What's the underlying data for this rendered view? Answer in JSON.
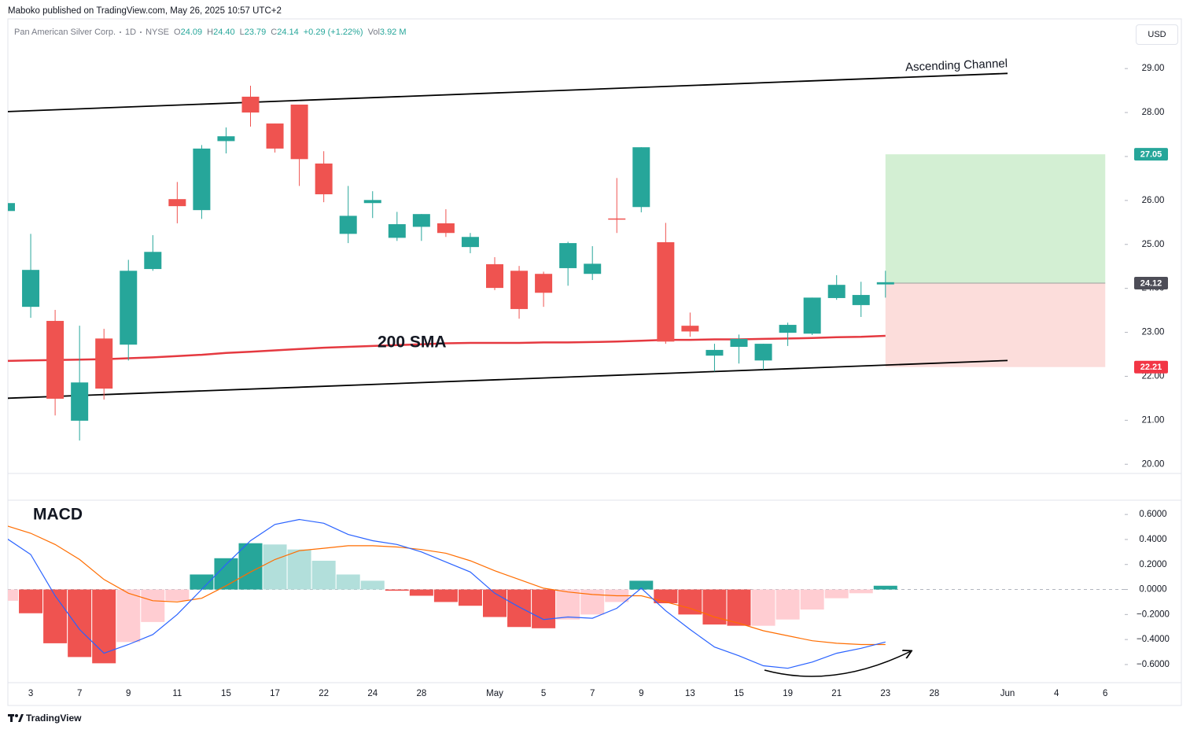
{
  "header": {
    "published": "Maboko published on TradingView.com, May 26, 2025 10:57 UTC+2",
    "currency": "USD",
    "footer": "TradingView",
    "legend": {
      "symbol": "Pan American Silver Corp.",
      "interval": "1D",
      "exchange": "NYSE",
      "items": [
        {
          "label": "O",
          "value": "24.09"
        },
        {
          "label": "H",
          "value": "24.40"
        },
        {
          "label": "L",
          "value": "23.79"
        },
        {
          "label": "C",
          "value": "24.14"
        }
      ],
      "change": "+0.29 (+1.22%)",
      "volume_label": "Vol",
      "volume": "3.92 M"
    }
  },
  "chart_data": [
    {
      "type": "candlestick",
      "up_color": "#26a69a",
      "down_color": "#ef5350",
      "grid": false,
      "categories": [
        null,
        "3",
        null,
        "7",
        null,
        "9",
        null,
        "11",
        null,
        "15",
        null,
        "17",
        null,
        "22",
        null,
        "24",
        null,
        "28",
        null,
        null,
        "May",
        null,
        "5",
        null,
        "7",
        null,
        "9",
        null,
        "13",
        null,
        "15",
        null,
        "19",
        null,
        "21",
        null,
        "23",
        null,
        "28",
        null,
        null,
        "Jun",
        null,
        "4",
        null,
        "6"
      ],
      "open": [
        25.76,
        23.58,
        23.26,
        20.99,
        22.86,
        22.72,
        24.44,
        26.03,
        25.78,
        27.35,
        28.36,
        27.75,
        28.18,
        26.84,
        25.24,
        25.94,
        25.15,
        25.4,
        25.48,
        24.94,
        24.55,
        24.4,
        24.33,
        24.46,
        24.33,
        25.59,
        25.85,
        25.05,
        23.15,
        22.47,
        22.67,
        22.36,
        22.99,
        22.97,
        23.78,
        23.62,
        24.09,
        null,
        null,
        null,
        null,
        null,
        null,
        null,
        null,
        null
      ],
      "high": [
        25.94,
        25.24,
        23.51,
        23.15,
        23.08,
        24.65,
        25.21,
        26.42,
        27.26,
        27.66,
        28.61,
        27.75,
        28.18,
        27.12,
        26.33,
        26.21,
        25.74,
        25.69,
        25.8,
        25.26,
        24.71,
        24.51,
        24.38,
        25.06,
        24.96,
        26.51,
        27.21,
        25.49,
        23.45,
        22.74,
        22.95,
        22.74,
        23.22,
        23.79,
        24.3,
        24.15,
        24.4,
        null,
        null,
        null,
        null,
        null,
        null,
        null,
        null,
        null
      ],
      "low": [
        25.76,
        23.33,
        21.11,
        20.54,
        21.47,
        22.36,
        24.4,
        25.48,
        25.58,
        27.07,
        27.68,
        27.09,
        26.33,
        25.96,
        25.03,
        25.6,
        25.08,
        25.08,
        25.17,
        24.8,
        23.96,
        23.31,
        23.58,
        24.06,
        24.19,
        25.26,
        25.73,
        22.74,
        22.9,
        22.11,
        22.29,
        22.15,
        22.69,
        22.94,
        23.74,
        23.35,
        23.79,
        null,
        null,
        null,
        null,
        null,
        null,
        null,
        null,
        null
      ],
      "close": [
        25.94,
        24.42,
        21.49,
        21.86,
        21.72,
        24.4,
        24.83,
        25.87,
        27.18,
        27.46,
        28.0,
        27.18,
        26.94,
        26.14,
        25.65,
        26.01,
        25.46,
        25.69,
        25.26,
        25.17,
        24.01,
        23.53,
        23.9,
        25.03,
        24.56,
        25.57,
        27.21,
        22.79,
        23.02,
        22.6,
        22.85,
        22.74,
        23.17,
        23.79,
        24.08,
        23.85,
        24.14,
        null,
        null,
        null,
        null,
        null,
        null,
        null,
        null,
        null
      ],
      "series": [
        {
          "name": "200 SMA",
          "color": "#e53940",
          "values": [
            22.35,
            22.36,
            22.37,
            22.38,
            22.39,
            22.41,
            22.43,
            22.46,
            22.49,
            22.53,
            22.56,
            22.59,
            22.62,
            22.65,
            22.67,
            22.69,
            22.71,
            22.73,
            22.75,
            22.76,
            22.76,
            22.76,
            22.77,
            22.77,
            22.78,
            22.79,
            22.81,
            22.83,
            22.83,
            22.84,
            22.84,
            22.85,
            22.86,
            22.87,
            22.89,
            22.9,
            22.92,
            null,
            null,
            null,
            null,
            null,
            null,
            null,
            null,
            null
          ]
        }
      ],
      "trendlines": [
        {
          "name": "Ascending Channel",
          "color": "#000000",
          "from": [
            0,
            28.02
          ],
          "to": [
            41,
            28.89
          ]
        },
        {
          "color": "#000000",
          "from": [
            0,
            21.5
          ],
          "to": [
            41,
            22.36
          ]
        }
      ],
      "position": {
        "from": 36,
        "to": 45,
        "entry": 24.12,
        "target": 27.05,
        "stop": 22.21,
        "target_color": "#d3efd3",
        "stop_color": "#fcdddb",
        "entry_color": "#9e9e9e",
        "target_tag": "#26a69a",
        "entry_tag": "#4d4d57",
        "stop_tag": "#f23645"
      },
      "ylim": [
        19.79,
        30.13
      ],
      "yticks": [
        {
          "value": 20,
          "label": "20.00"
        },
        {
          "value": 21,
          "label": "21.00"
        },
        {
          "value": 22,
          "label": "22.00"
        },
        {
          "value": 23,
          "label": "23.00"
        },
        {
          "value": 24,
          "label": "24.00"
        },
        {
          "value": 25,
          "label": "25.00"
        },
        {
          "value": 26,
          "label": "26.00"
        },
        {
          "value": 27,
          "label": "27.00"
        },
        {
          "value": 28,
          "label": "28.00"
        },
        {
          "value": 29,
          "label": "29.00"
        }
      ]
    },
    {
      "type": "macd",
      "title": "MACD",
      "zero_line": true,
      "histogram_colors": {
        "up_strong": "#26a69a",
        "up_weak": "#b2dfdb",
        "down_strong": "#ef5350",
        "down_weak": "#ffcdd2"
      },
      "histogram": [
        -0.09,
        -0.19,
        -0.43,
        -0.54,
        -0.59,
        -0.42,
        -0.26,
        -0.09,
        0.12,
        0.25,
        0.37,
        0.36,
        0.32,
        0.23,
        0.12,
        0.07,
        -0.01,
        -0.05,
        -0.1,
        -0.13,
        -0.22,
        -0.3,
        -0.31,
        -0.24,
        -0.2,
        -0.1,
        0.07,
        -0.11,
        -0.2,
        -0.28,
        -0.29,
        -0.29,
        -0.24,
        -0.16,
        -0.07,
        -0.03,
        0.03,
        null,
        null,
        null,
        null,
        null,
        null,
        null,
        null,
        null
      ],
      "macd_line": {
        "color": "#2962ff",
        "values": [
          0.41,
          0.28,
          -0.05,
          -0.32,
          -0.51,
          -0.44,
          -0.36,
          -0.2,
          0.0,
          0.2,
          0.39,
          0.52,
          0.56,
          0.53,
          0.44,
          0.39,
          0.36,
          0.3,
          0.22,
          0.14,
          -0.03,
          -0.14,
          -0.24,
          -0.22,
          -0.23,
          -0.15,
          0.01,
          -0.17,
          -0.32,
          -0.46,
          -0.53,
          -0.61,
          -0.63,
          -0.58,
          -0.51,
          -0.47,
          -0.42,
          null,
          null,
          null,
          null,
          null,
          null,
          null,
          null,
          null
        ]
      },
      "signal_line": {
        "color": "#ff6d00",
        "values": [
          0.51,
          0.45,
          0.36,
          0.24,
          0.08,
          -0.03,
          -0.09,
          -0.1,
          -0.07,
          0.03,
          0.14,
          0.24,
          0.31,
          0.33,
          0.35,
          0.35,
          0.34,
          0.32,
          0.29,
          0.23,
          0.15,
          0.08,
          0.01,
          -0.02,
          -0.04,
          -0.05,
          -0.05,
          -0.1,
          -0.15,
          -0.22,
          -0.27,
          -0.33,
          -0.37,
          -0.41,
          -0.43,
          -0.44,
          -0.44,
          null,
          null,
          null,
          null,
          null,
          null,
          null,
          null,
          null
        ]
      },
      "ylim": [
        -0.745,
        0.714
      ],
      "yticks": [
        {
          "value": 0.6,
          "label": "0.6000"
        },
        {
          "value": 0.4,
          "label": "0.4000"
        },
        {
          "value": 0.2,
          "label": "0.2000"
        },
        {
          "value": 0,
          "label": "0.0000"
        },
        {
          "value": -0.2,
          "label": "−0.2000"
        },
        {
          "value": -0.4,
          "label": "−0.4000"
        },
        {
          "value": -0.6,
          "label": "−0.6000"
        }
      ]
    }
  ]
}
